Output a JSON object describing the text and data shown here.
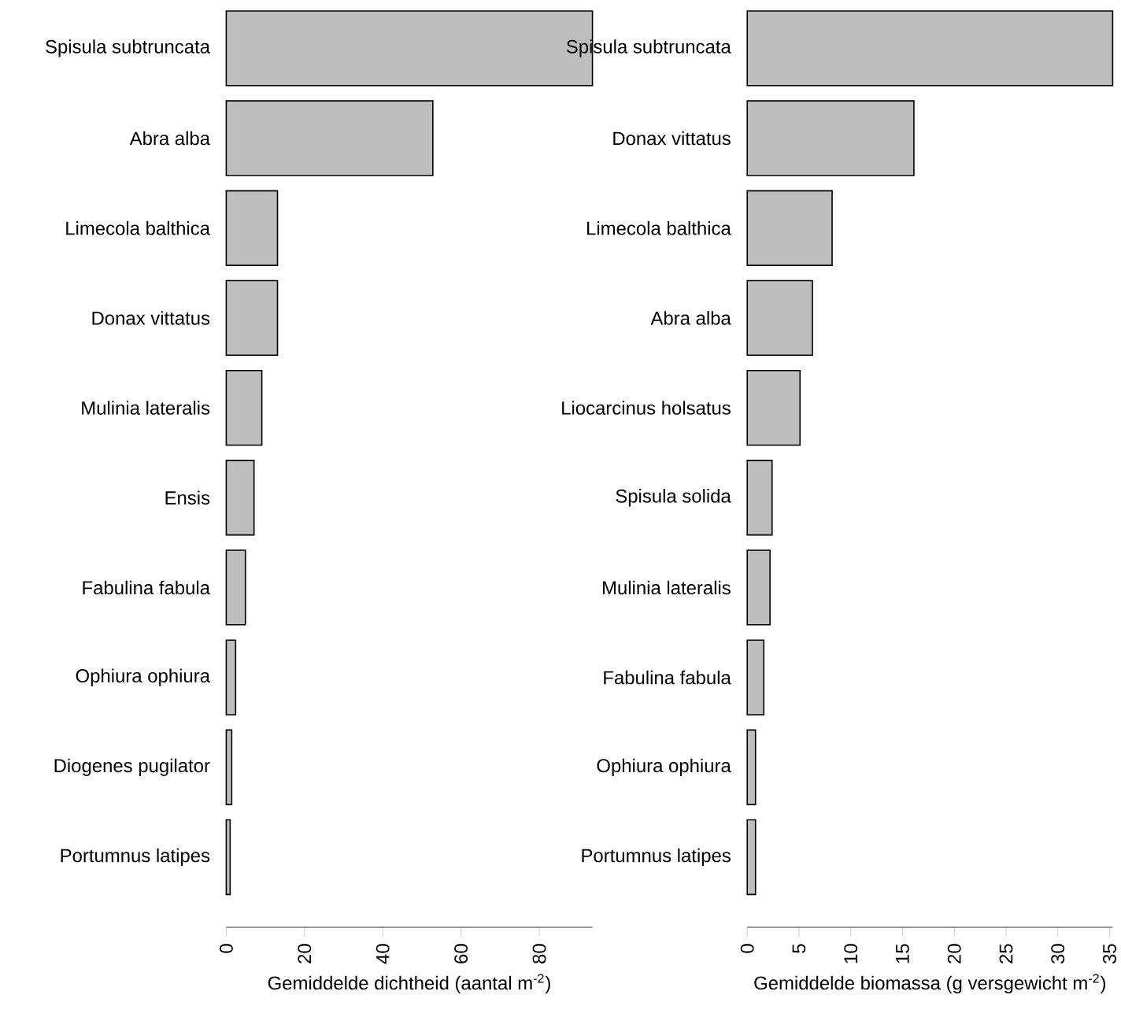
{
  "chart_data": [
    {
      "type": "bar",
      "orientation": "horizontal",
      "categories": [
        "Spisula subtruncata",
        "Abra alba",
        "Limecola balthica",
        "Donax vittatus",
        "Mulinia lateralis",
        "Ensis",
        "Fabulina fabula",
        "Ophiura ophiura",
        "Diogenes pugilator",
        "Portumnus latipes"
      ],
      "values": [
        93.6,
        52.8,
        13.1,
        13.1,
        9.1,
        7.1,
        4.9,
        2.4,
        1.4,
        1.0
      ],
      "color": "#bebebe",
      "xlim": [
        0,
        93.6
      ],
      "xticks": [
        0,
        20,
        40,
        60,
        80
      ],
      "xlabel": "Gemiddelde dichtheid (aantal m$^{-2}$)"
    },
    {
      "type": "bar",
      "orientation": "horizontal",
      "categories": [
        "Spisula subtruncata",
        "Donax vittatus",
        "Limecola balthica",
        "Abra alba",
        "Liocarcinus holsatus",
        "Spisula solida",
        "Mulinia lateralis",
        "Fabulina fabula",
        "Ophiura ophiura",
        "Portumnus latipes"
      ],
      "values": [
        35.3,
        16.1,
        8.2,
        6.3,
        5.1,
        2.4,
        2.2,
        1.6,
        0.8,
        0.8
      ],
      "color": "#bebebe",
      "xlim": [
        0,
        35.3
      ],
      "xticks": [
        0,
        5,
        10,
        15,
        20,
        25,
        30,
        35
      ],
      "xlabel": "Gemiddelde biomassa (g versgewicht m$^{-2}$)"
    }
  ]
}
